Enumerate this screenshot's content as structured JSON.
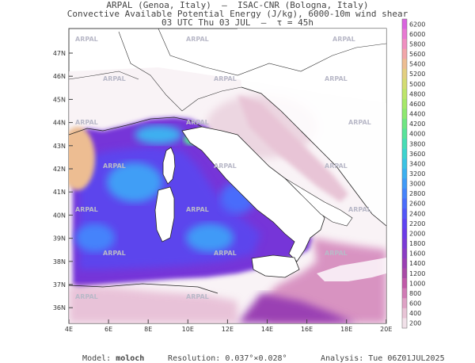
{
  "header": {
    "line1": "ARPAL (Genoa, Italy)  –  ISAC-CNR (Bologna, Italy)",
    "line2": "Convective Available Potential Energy (J/kg), 6000-10m wind shear",
    "line3": "03 UTC Thu 03 JUL  –  τ = 45h"
  },
  "map": {
    "lat_labels": [
      "47N",
      "46N",
      "45N",
      "44N",
      "43N",
      "42N",
      "41N",
      "40N",
      "39N",
      "38N",
      "37N",
      "36N"
    ],
    "lon_labels": [
      "4E",
      "6E",
      "8E",
      "10E",
      "12E",
      "14E",
      "16E",
      "18E",
      "20E"
    ],
    "watermark": "ARPAL"
  },
  "colorbar": {
    "values": [
      "200",
      "400",
      "600",
      "800",
      "1000",
      "1200",
      "1400",
      "1600",
      "1800",
      "2000",
      "2200",
      "2400",
      "2600",
      "2800",
      "3000",
      "3200",
      "3400",
      "3600",
      "3800",
      "4000",
      "4200",
      "4400",
      "4600",
      "4800",
      "5000",
      "5200",
      "5400",
      "5600",
      "5800",
      "6000",
      "6200"
    ],
    "colors": [
      "#f1e1e9",
      "#e8c4d6",
      "#dea2c5",
      "#d07bb5",
      "#c05aa8",
      "#a94aa6",
      "#9a3fb3",
      "#8a3cc4",
      "#7a3ad6",
      "#6b3ae8",
      "#5e43f3",
      "#5256f8",
      "#4a6cfb",
      "#4583fb",
      "#409af7",
      "#3cb0f0",
      "#3bc3e4",
      "#3dd3cf",
      "#47ddb5",
      "#58e39a",
      "#6fe682",
      "#8de86f",
      "#a6e868",
      "#bde56a",
      "#d3dc72",
      "#e3cf80",
      "#edbd92",
      "#f2a6a9",
      "#f08fc0",
      "#e879d2",
      "#d964de"
    ],
    "accent": "#cc33aa"
  },
  "footer": {
    "model_label": "Model:",
    "model_value": "moloch",
    "resolution_label": "Resolution:",
    "resolution_value": "0.037°×0.028°",
    "analysis_label": "Analysis:",
    "analysis_value": "Tue 06Z01JUL2025"
  }
}
